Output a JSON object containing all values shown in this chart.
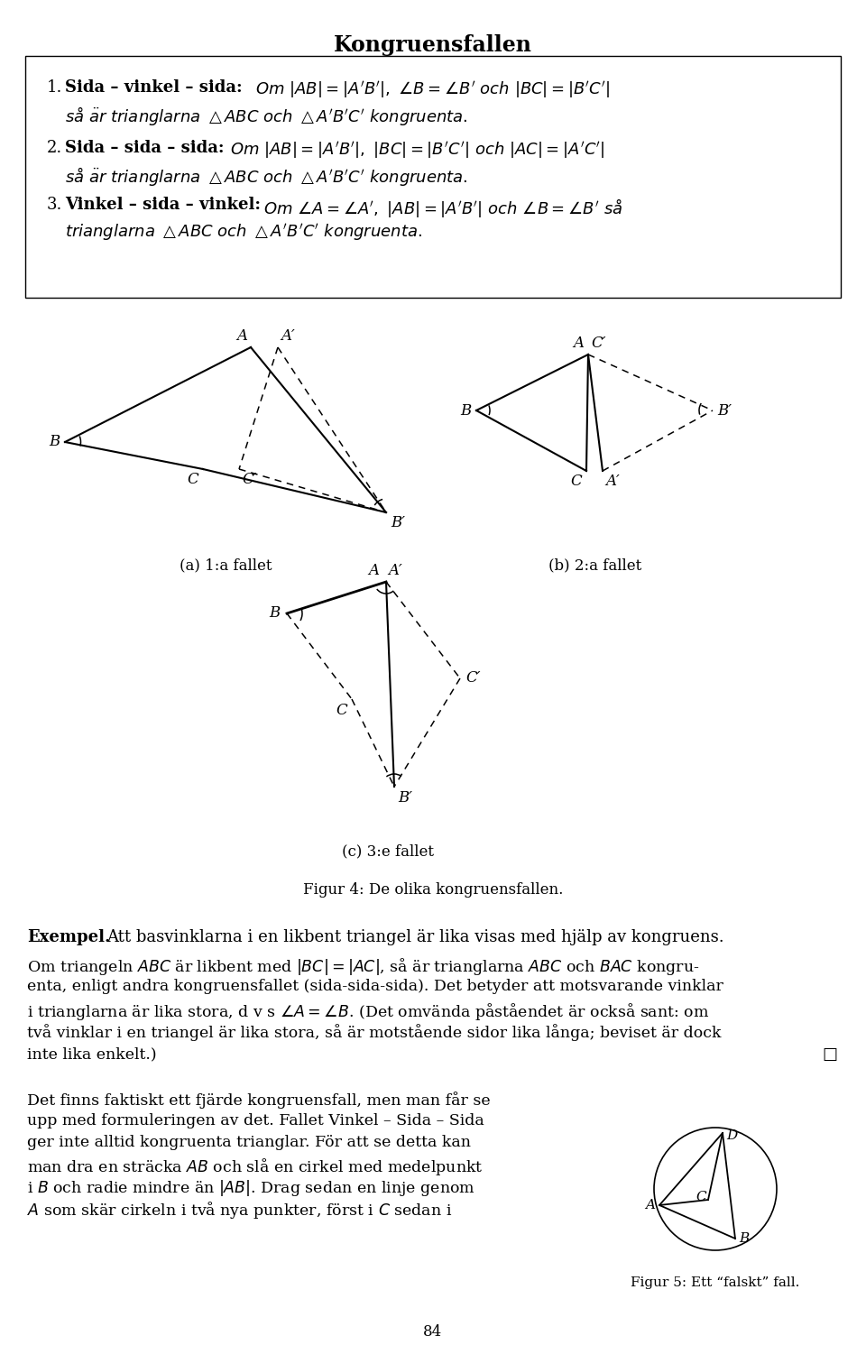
{
  "title": "Kongruensfallen",
  "caption_a": "(a) 1:a fallet",
  "caption_b": "(b) 2:a fallet",
  "caption_c": "(c) 3:e fallet",
  "fig4_caption": "Figur 4: De olika kongruensfallen.",
  "fig5_caption": "Figur 5: Ett “falskt” fall.",
  "bg_color": "#ffffff",
  "line_color": "#000000",
  "page_number": "84"
}
